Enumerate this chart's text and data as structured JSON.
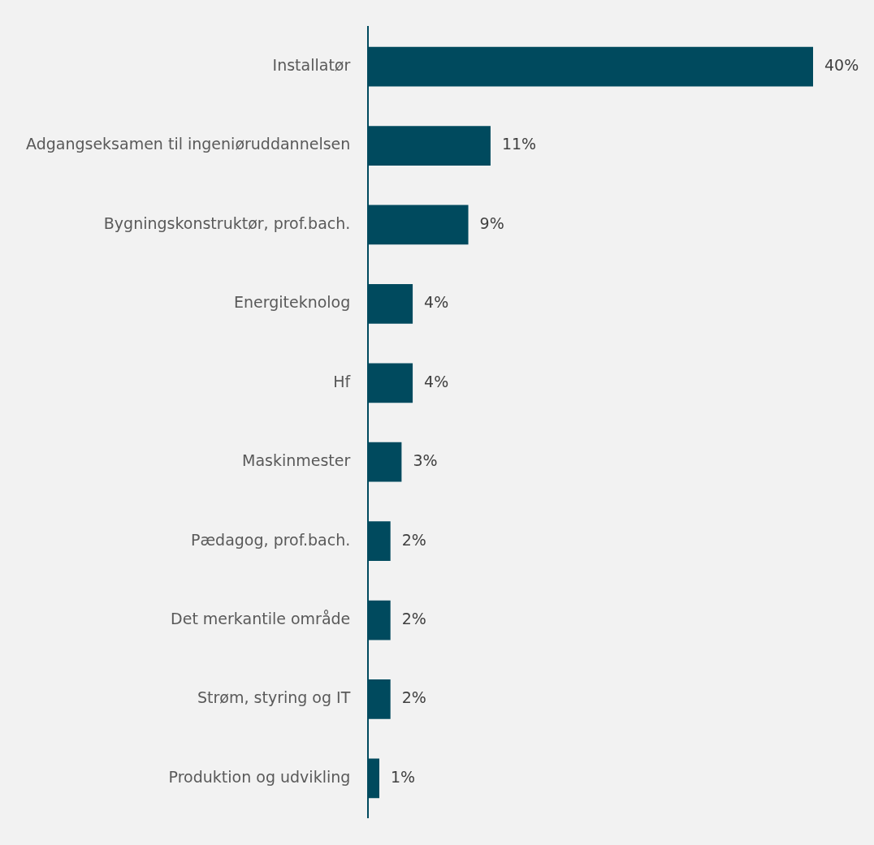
{
  "chart_data": {
    "type": "bar",
    "orientation": "horizontal",
    "categories": [
      "Installatør",
      "Adgangseksamen til ingeniøruddannelsen",
      "Bygningskonstruktør, prof.bach.",
      "Energiteknolog",
      "Hf",
      "Maskinmester",
      "Pædagog, prof.bach.",
      "Det merkantile område",
      "Strøm, styring og IT",
      "Produktion og udvikling"
    ],
    "values": [
      40,
      11,
      9,
      4,
      4,
      3,
      2,
      2,
      2,
      1
    ],
    "value_labels": [
      "40%",
      "11%",
      "9%",
      "4%",
      "4%",
      "3%",
      "2%",
      "2%",
      "2%",
      "1%"
    ],
    "color": "#004a5e",
    "legend": false,
    "tick_labels": "y"
  }
}
